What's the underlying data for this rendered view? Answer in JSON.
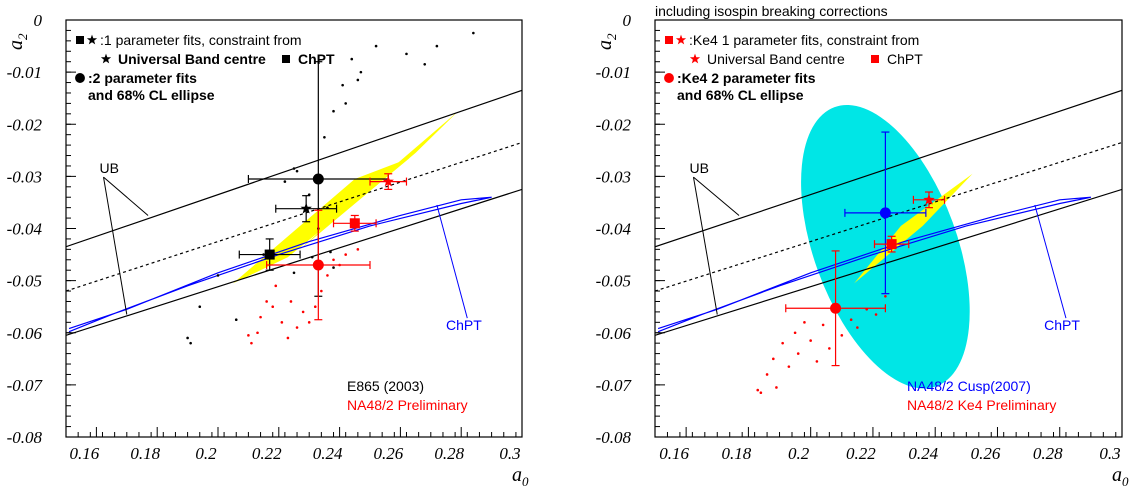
{
  "chart_data": [
    {
      "type": "scatter",
      "xlabel": "a0",
      "ylabel": "a2",
      "xlim": [
        0.15,
        0.3
      ],
      "ylim": [
        -0.08,
        0.0
      ],
      "xticks": [
        "0.16",
        "0.18",
        "0.2",
        "0.22",
        "0.24",
        "0.26",
        "0.28",
        "0.3"
      ],
      "yticks": [
        "0",
        "-0.01",
        "-0.02",
        "-0.03",
        "-0.04",
        "-0.05",
        "-0.06",
        "-0.07",
        "-0.08"
      ],
      "heading": "",
      "legend": [
        {
          "text": ":1 parameter fits, constraint from",
          "bold": false
        },
        {
          "text": "Universal Band centre",
          "bold": true
        },
        {
          "text": "ChPT",
          "bold": true
        },
        {
          "text": ":2 parameter fits",
          "bold": true
        },
        {
          "text": "and 68% CL ellipse",
          "bold": true
        }
      ],
      "ub_label": "UB",
      "chpt_label": "ChPT",
      "notes": [
        {
          "text": "E865 (2003)",
          "color": "#000000"
        },
        {
          "text": "NA48/2 Preliminary",
          "color": "#ff0000"
        }
      ],
      "colors": {
        "band": "#ffff00",
        "ellipse": "#00e6e6",
        "ub": "#000000",
        "chpt": "#0000ff",
        "na48": "#ff0000",
        "e865": "#000000"
      },
      "ub_upper": [
        [
          0.15,
          -0.0435
        ],
        [
          0.3,
          -0.0135
        ]
      ],
      "ub_center": [
        [
          0.15,
          -0.052
        ],
        [
          0.3,
          -0.0235
        ]
      ],
      "ub_lower": [
        [
          0.15,
          -0.0605
        ],
        [
          0.3,
          -0.0325
        ]
      ],
      "chpt_outer": [
        [
          0.151,
          -0.0592
        ],
        [
          0.17,
          -0.0555
        ],
        [
          0.2,
          -0.0485
        ],
        [
          0.23,
          -0.0425
        ],
        [
          0.26,
          -0.0375
        ],
        [
          0.28,
          -0.0345
        ],
        [
          0.29,
          -0.034
        ],
        [
          0.28,
          -0.0352
        ],
        [
          0.25,
          -0.0395
        ],
        [
          0.22,
          -0.045
        ],
        [
          0.19,
          -0.051
        ],
        [
          0.165,
          -0.0565
        ],
        [
          0.151,
          -0.0598
        ]
      ],
      "chpt_pointer": [
        [
          0.272,
          -0.0355
        ],
        [
          0.282,
          -0.0572
        ]
      ],
      "bands": [
        [
          [
            0.205,
            -0.0505
          ],
          [
            0.245,
            -0.0305
          ],
          [
            0.263,
            -0.0265
          ],
          [
            0.223,
            -0.0455
          ]
        ],
        [
          [
            0.226,
            -0.0445
          ],
          [
            0.265,
            -0.0255
          ],
          [
            0.279,
            -0.0175
          ],
          [
            0.243,
            -0.0355
          ]
        ]
      ],
      "ellipse": null,
      "points": [
        {
          "label": "1 parameter fit, Universal Band constraint",
          "series": "E865",
          "marker": "star",
          "x": 0.229,
          "y": -0.0362,
          "xerr": 0.01,
          "yerr": 0.0025,
          "color": "#000000"
        },
        {
          "label": "1 parameter fit, ChPT constraint",
          "series": "E865",
          "marker": "square",
          "x": 0.217,
          "y": -0.045,
          "xerr": 0.01,
          "yerr": 0.003,
          "color": "#000000"
        },
        {
          "label": "2 parameter fit",
          "series": "E865",
          "marker": "circle",
          "x": 0.233,
          "y": -0.0305,
          "xerr": 0.023,
          "yerr": 0.0225,
          "color": "#000000"
        },
        {
          "label": "1 parameter fit, Universal Band constraint",
          "series": "NA48/2",
          "marker": "star",
          "x": 0.256,
          "y": -0.031,
          "xerr": 0.006,
          "yerr": 0.0015,
          "color": "#ff0000"
        },
        {
          "label": "1 parameter fit, ChPT constraint",
          "series": "NA48/2",
          "marker": "square",
          "x": 0.245,
          "y": -0.039,
          "xerr": 0.007,
          "yerr": 0.0015,
          "color": "#ff0000"
        },
        {
          "label": "2 parameter fit",
          "series": "NA48/2",
          "marker": "circle",
          "x": 0.233,
          "y": -0.047,
          "xerr": 0.017,
          "yerr": 0.0105,
          "color": "#ff0000"
        }
      ],
      "ellipse_points_black": [
        [
          0.19,
          -0.061
        ],
        [
          0.191,
          -0.062
        ],
        [
          0.194,
          -0.055
        ],
        [
          0.2,
          -0.049
        ],
        [
          0.206,
          -0.0575
        ],
        [
          0.215,
          -0.045
        ],
        [
          0.225,
          -0.0485
        ],
        [
          0.231,
          -0.0455
        ],
        [
          0.237,
          -0.0445
        ],
        [
          0.238,
          -0.0475
        ],
        [
          0.245,
          -0.0395
        ],
        [
          0.236,
          -0.036
        ],
        [
          0.233,
          -0.04
        ],
        [
          0.23,
          -0.0335
        ],
        [
          0.226,
          -0.029
        ],
        [
          0.225,
          -0.0285
        ],
        [
          0.222,
          -0.031
        ],
        [
          0.235,
          -0.0225
        ],
        [
          0.238,
          -0.0175
        ],
        [
          0.242,
          -0.016
        ],
        [
          0.241,
          -0.0125
        ],
        [
          0.246,
          -0.0115
        ],
        [
          0.244,
          -0.0075
        ],
        [
          0.247,
          -0.01
        ],
        [
          0.252,
          -0.005
        ],
        [
          0.262,
          -0.0065
        ],
        [
          0.268,
          -0.0085
        ],
        [
          0.272,
          -0.005
        ],
        [
          0.284,
          -0.0025
        ]
      ],
      "ellipse_points_red": [
        [
          0.21,
          -0.0605
        ],
        [
          0.211,
          -0.062
        ],
        [
          0.213,
          -0.06
        ],
        [
          0.214,
          -0.057
        ],
        [
          0.216,
          -0.054
        ],
        [
          0.218,
          -0.055
        ],
        [
          0.219,
          -0.051
        ],
        [
          0.221,
          -0.058
        ],
        [
          0.223,
          -0.061
        ],
        [
          0.224,
          -0.054
        ],
        [
          0.226,
          -0.059
        ],
        [
          0.228,
          -0.056
        ],
        [
          0.23,
          -0.058
        ],
        [
          0.232,
          -0.055
        ],
        [
          0.234,
          -0.052
        ],
        [
          0.236,
          -0.049
        ],
        [
          0.238,
          -0.046
        ],
        [
          0.24,
          -0.047
        ],
        [
          0.242,
          -0.045
        ],
        [
          0.246,
          -0.044
        ]
      ]
    },
    {
      "type": "scatter",
      "xlabel": "a0",
      "ylabel": "a2",
      "xlim": [
        0.15,
        0.3
      ],
      "ylim": [
        -0.08,
        0.0
      ],
      "xticks": [
        "0.16",
        "0.18",
        "0.2",
        "0.22",
        "0.24",
        "0.26",
        "0.28",
        "0.3"
      ],
      "yticks": [
        "0",
        "-0.01",
        "-0.02",
        "-0.03",
        "-0.04",
        "-0.05",
        "-0.06",
        "-0.07",
        "-0.08"
      ],
      "heading": "including isospin breaking corrections",
      "legend": [
        {
          "text": ":Ke4 1 parameter fits, constraint from",
          "bold": false
        },
        {
          "text": "Universal Band centre",
          "bold": false
        },
        {
          "text": "ChPT",
          "bold": false
        },
        {
          "text": ":Ke4 2 parameter fits",
          "bold": true
        },
        {
          "text": "and 68% CL ellipse",
          "bold": true
        }
      ],
      "ub_label": "UB",
      "chpt_label": "ChPT",
      "notes": [
        {
          "text": "NA48/2 Cusp(2007)",
          "color": "#0000ff"
        },
        {
          "text": "NA48/2 Ke4 Preliminary",
          "color": "#ff0000"
        }
      ],
      "colors": {
        "band": "#ffff00",
        "ellipse": "#00e6e6",
        "ub": "#000000",
        "chpt": "#0000ff",
        "na48": "#ff0000",
        "cusp": "#0000ff"
      },
      "ub_upper": [
        [
          0.15,
          -0.0435
        ],
        [
          0.3,
          -0.0135
        ]
      ],
      "ub_center": [
        [
          0.15,
          -0.052
        ],
        [
          0.3,
          -0.0235
        ]
      ],
      "ub_lower": [
        [
          0.15,
          -0.0605
        ],
        [
          0.3,
          -0.0325
        ]
      ],
      "chpt_outer": [
        [
          0.151,
          -0.0592
        ],
        [
          0.17,
          -0.0555
        ],
        [
          0.2,
          -0.0485
        ],
        [
          0.23,
          -0.0425
        ],
        [
          0.26,
          -0.0375
        ],
        [
          0.28,
          -0.0345
        ],
        [
          0.29,
          -0.034
        ],
        [
          0.28,
          -0.0352
        ],
        [
          0.25,
          -0.0395
        ],
        [
          0.22,
          -0.045
        ],
        [
          0.19,
          -0.051
        ],
        [
          0.165,
          -0.0565
        ],
        [
          0.151,
          -0.0598
        ]
      ],
      "chpt_pointer": [
        [
          0.272,
          -0.0355
        ],
        [
          0.282,
          -0.0572
        ]
      ],
      "bands": [
        [
          [
            0.214,
            -0.0505
          ],
          [
            0.236,
            -0.0395
          ],
          [
            0.252,
            -0.0295
          ],
          [
            0.229,
            -0.0395
          ]
        ]
      ],
      "ellipse": {
        "cx": 0.224,
        "cy": -0.0435,
        "rx": 0.023,
        "ry": 0.0285,
        "angle": -20,
        "color": "#00e6e6"
      },
      "points": [
        {
          "label": "Cusp (2007)",
          "series": "NA48/2 Cusp",
          "marker": "circle",
          "x": 0.224,
          "y": -0.037,
          "xerr": 0.013,
          "yerr": 0.0155,
          "color": "#0000ff"
        },
        {
          "label": "1 parameter fit, Universal Band constraint",
          "series": "NA48/2 Ke4",
          "marker": "star",
          "x": 0.238,
          "y": -0.0345,
          "xerr": 0.005,
          "yerr": 0.0015,
          "color": "#ff0000"
        },
        {
          "label": "1 parameter fit, ChPT constraint",
          "series": "NA48/2 Ke4",
          "marker": "square",
          "x": 0.226,
          "y": -0.043,
          "xerr": 0.0055,
          "yerr": 0.0015,
          "color": "#ff0000"
        },
        {
          "label": "2 parameter fit",
          "series": "NA48/2 Ke4",
          "marker": "circle",
          "x": 0.208,
          "y": -0.0553,
          "xerr": 0.016,
          "yerr": 0.011,
          "color": "#ff0000"
        }
      ],
      "ellipse_points_black": [],
      "ellipse_points_red": [
        [
          0.183,
          -0.071
        ],
        [
          0.184,
          -0.0715
        ],
        [
          0.186,
          -0.068
        ],
        [
          0.188,
          -0.065
        ],
        [
          0.189,
          -0.0705
        ],
        [
          0.191,
          -0.062
        ],
        [
          0.193,
          -0.0665
        ],
        [
          0.195,
          -0.06
        ],
        [
          0.196,
          -0.064
        ],
        [
          0.198,
          -0.058
        ],
        [
          0.2,
          -0.0615
        ],
        [
          0.202,
          -0.0655
        ],
        [
          0.204,
          -0.0585
        ],
        [
          0.206,
          -0.063
        ],
        [
          0.21,
          -0.0605
        ],
        [
          0.213,
          -0.0575
        ],
        [
          0.215,
          -0.059
        ],
        [
          0.218,
          -0.0555
        ],
        [
          0.221,
          -0.0565
        ],
        [
          0.224,
          -0.053
        ]
      ]
    }
  ]
}
